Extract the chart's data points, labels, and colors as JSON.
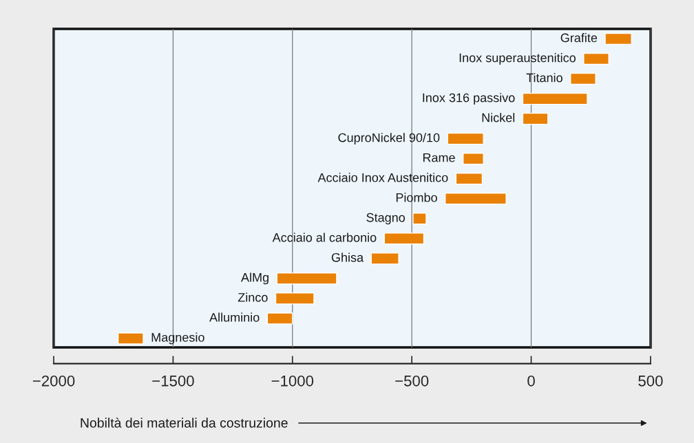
{
  "chart_data": {
    "type": "bar",
    "orientation": "horizontal",
    "categories": [
      "Grafite",
      "Inox superaustenitico",
      "Titanio",
      "Inox 316 passivo",
      "Nickel",
      "CuproNickel 90/10",
      "Rame",
      "Acciaio Inox Austenitico",
      "Piombo",
      "Stagno",
      "Acciaio al carbonio",
      "Ghisa",
      "AlMg",
      "Zinco",
      "Alluminio",
      "Magnesio"
    ],
    "base": [
      310,
      220,
      165,
      -35,
      -35,
      -350,
      -285,
      -315,
      -360,
      -495,
      -615,
      -670,
      -1065,
      -1070,
      -1105,
      -1730
    ],
    "values": [
      110,
      105,
      105,
      270,
      105,
      150,
      85,
      110,
      255,
      55,
      165,
      115,
      250,
      160,
      105,
      105
    ],
    "color": "#ea8107",
    "xlim": [
      -2000,
      500
    ],
    "xticks": [
      {
        "value": -2000,
        "label": "−2000"
      },
      {
        "value": -1500,
        "label": "−1500"
      },
      {
        "value": -1000,
        "label": "−1000"
      },
      {
        "value": -500,
        "label": "−500"
      },
      0,
      500
    ],
    "xlabel": "Nobiltà dei materiali da costruzione",
    "grid": "x"
  }
}
